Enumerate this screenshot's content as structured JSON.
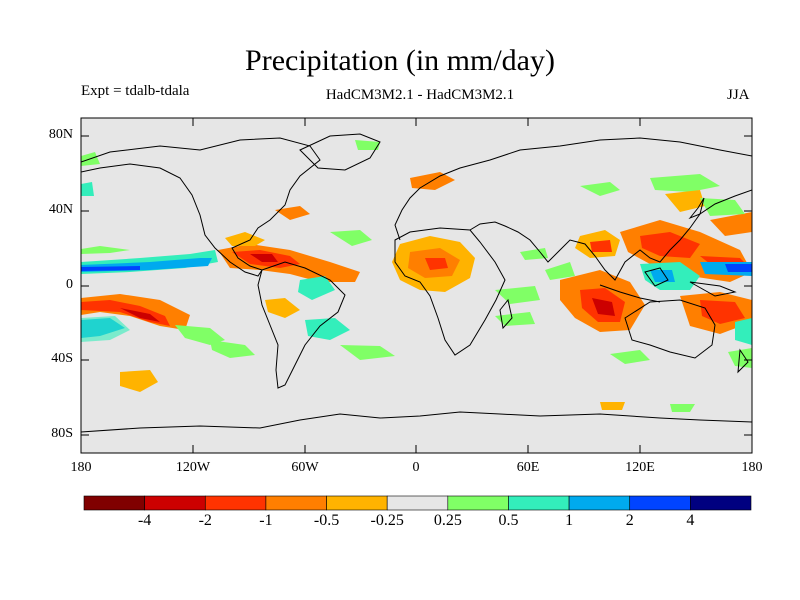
{
  "title": "Precipitation (in mm/day)",
  "subtitle_left": "Expt = tdalb-tdala",
  "subtitle_center": "HadCM3M2.1 - HadCM3M2.1",
  "subtitle_right": "JJA",
  "lat_labels": [
    "80N",
    "40N",
    "0",
    "40S",
    "80S"
  ],
  "lon_labels": [
    "180",
    "120W",
    "60W",
    "0",
    "60E",
    "120E",
    "180"
  ],
  "colorbar": {
    "labels": [
      "-4",
      "-2",
      "-1",
      "-0.5",
      "-0.25",
      "0.25",
      "0.5",
      "1",
      "2",
      "4"
    ],
    "colors": [
      "#800000",
      "#cc0000",
      "#ff3300",
      "#ff7f00",
      "#ffb300",
      "#e6e6e6",
      "#80ff66",
      "#33eebb",
      "#00aaee",
      "#0044ff",
      "#000080"
    ]
  },
  "map": {
    "ocean_color": "#e6e6e6",
    "coast_color": "#000000"
  }
}
